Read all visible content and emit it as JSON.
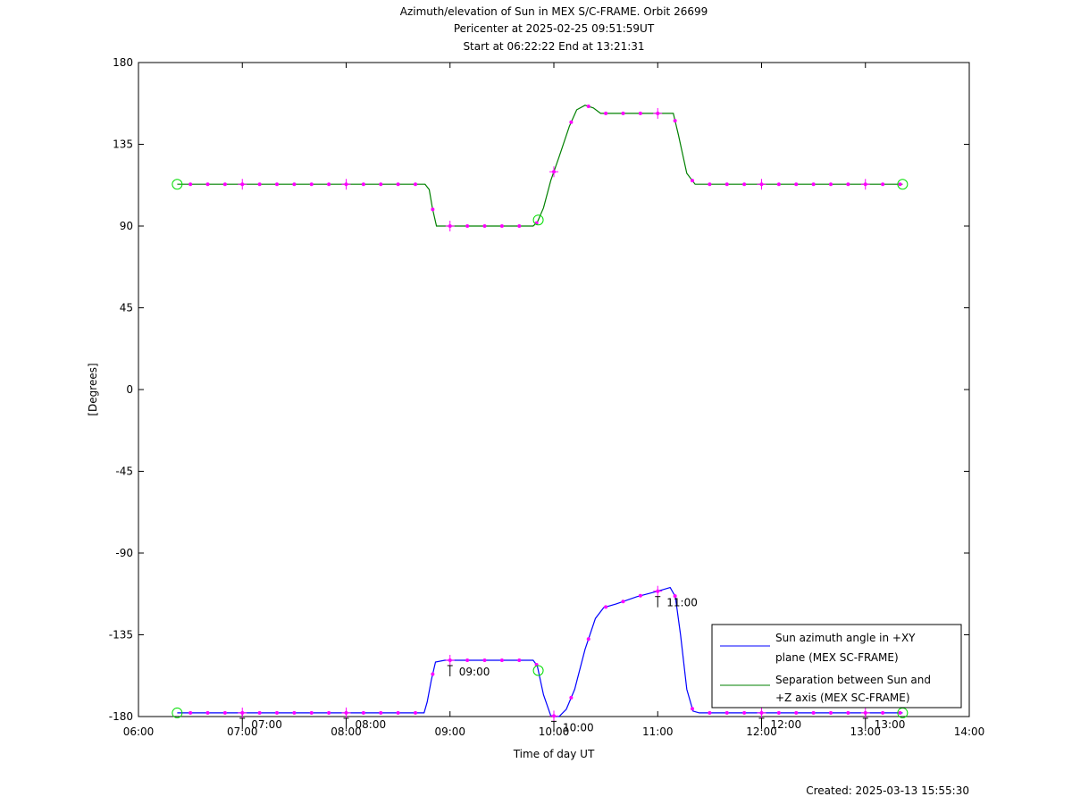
{
  "chart_data": {
    "type": "line",
    "title_lines": [
      "Azimuth/elevation of Sun in MEX S/C-FRAME.  Orbit 26699",
      "Pericenter at 2025-02-25 09:51:59UT",
      "Start at 06:22:22 End at 13:21:31"
    ],
    "xlabel": "Time of day UT",
    "ylabel": "[Degrees]",
    "xlim": [
      6,
      14
    ],
    "ylim": [
      -180,
      180
    ],
    "x_ticks": [
      "06:00",
      "07:00",
      "08:00",
      "09:00",
      "10:00",
      "11:00",
      "12:00",
      "13:00",
      "14:00"
    ],
    "y_ticks": [
      "180",
      "135",
      "90",
      "45",
      "0",
      "-45",
      "-90",
      "-135",
      "-180"
    ],
    "y_tick_values": [
      180,
      135,
      90,
      45,
      0,
      -45,
      -90,
      -135,
      -180
    ],
    "grid": false,
    "legend_position": "bottom-right",
    "footer": "Created: 2025-03-13 15:55:30",
    "colors": {
      "azimuth": "#0000ff",
      "separation": "#008000",
      "marker": "#ff00ff",
      "circle": "#00dd00"
    },
    "series": [
      {
        "name": "Sun azimuth angle in +XY plane (MEX SC-FRAME)",
        "legend_lines": [
          "Sun azimuth angle in +XY",
          "plane (MEX SC-FRAME)"
        ],
        "color": "#0000ff",
        "points": [
          [
            6.373,
            -178
          ],
          [
            8.75,
            -178
          ],
          [
            8.78,
            -172
          ],
          [
            8.82,
            -160
          ],
          [
            8.86,
            -150
          ],
          [
            8.95,
            -149
          ],
          [
            9.8,
            -149
          ],
          [
            9.84,
            -152
          ],
          [
            9.9,
            -168
          ],
          [
            9.97,
            -179.5
          ],
          [
            10.05,
            -180
          ],
          [
            10.12,
            -176
          ],
          [
            10.2,
            -165
          ],
          [
            10.3,
            -143
          ],
          [
            10.4,
            -126
          ],
          [
            10.48,
            -120
          ],
          [
            10.6,
            -118
          ],
          [
            10.8,
            -114
          ],
          [
            11.0,
            -111
          ],
          [
            11.12,
            -109
          ],
          [
            11.17,
            -114
          ],
          [
            11.22,
            -135
          ],
          [
            11.28,
            -165
          ],
          [
            11.34,
            -177
          ],
          [
            11.4,
            -178
          ],
          [
            13.358,
            -178
          ]
        ]
      },
      {
        "name": "Separation between Sun and +Z axis (MEX SC-FRAME)",
        "legend_lines": [
          "Separation between Sun and",
          "+Z axis (MEX SC-FRAME)"
        ],
        "color": "#008000",
        "points": [
          [
            6.373,
            113
          ],
          [
            8.76,
            113
          ],
          [
            8.8,
            110
          ],
          [
            8.83,
            100
          ],
          [
            8.87,
            90
          ],
          [
            8.95,
            90
          ],
          [
            9.8,
            90
          ],
          [
            9.84,
            92
          ],
          [
            9.9,
            100
          ],
          [
            9.97,
            115
          ],
          [
            10.05,
            128
          ],
          [
            10.15,
            145
          ],
          [
            10.22,
            154
          ],
          [
            10.3,
            156.5
          ],
          [
            10.38,
            155
          ],
          [
            10.45,
            152
          ],
          [
            10.6,
            152
          ],
          [
            11.1,
            152
          ],
          [
            11.15,
            152
          ],
          [
            11.2,
            140
          ],
          [
            11.28,
            119
          ],
          [
            11.36,
            113
          ],
          [
            11.45,
            113
          ],
          [
            13.358,
            113
          ]
        ]
      }
    ],
    "time_annotations": [
      {
        "label": "07:00",
        "x": 7.0
      },
      {
        "label": "08:00",
        "x": 8.0
      },
      {
        "label": "09:00",
        "x": 9.0
      },
      {
        "label": "10:00",
        "x": 10.0
      },
      {
        "label": "11:00",
        "x": 11.0
      },
      {
        "label": "12:00",
        "x": 12.0
      },
      {
        "label": "13:00",
        "x": 13.0
      }
    ],
    "circle_markers": [
      {
        "series": 0,
        "x": 6.373
      },
      {
        "series": 0,
        "x": 9.85
      },
      {
        "series": 0,
        "x": 13.358
      },
      {
        "series": 1,
        "x": 6.373
      },
      {
        "series": 1,
        "x": 9.85
      },
      {
        "series": 1,
        "x": 13.358
      }
    ]
  }
}
